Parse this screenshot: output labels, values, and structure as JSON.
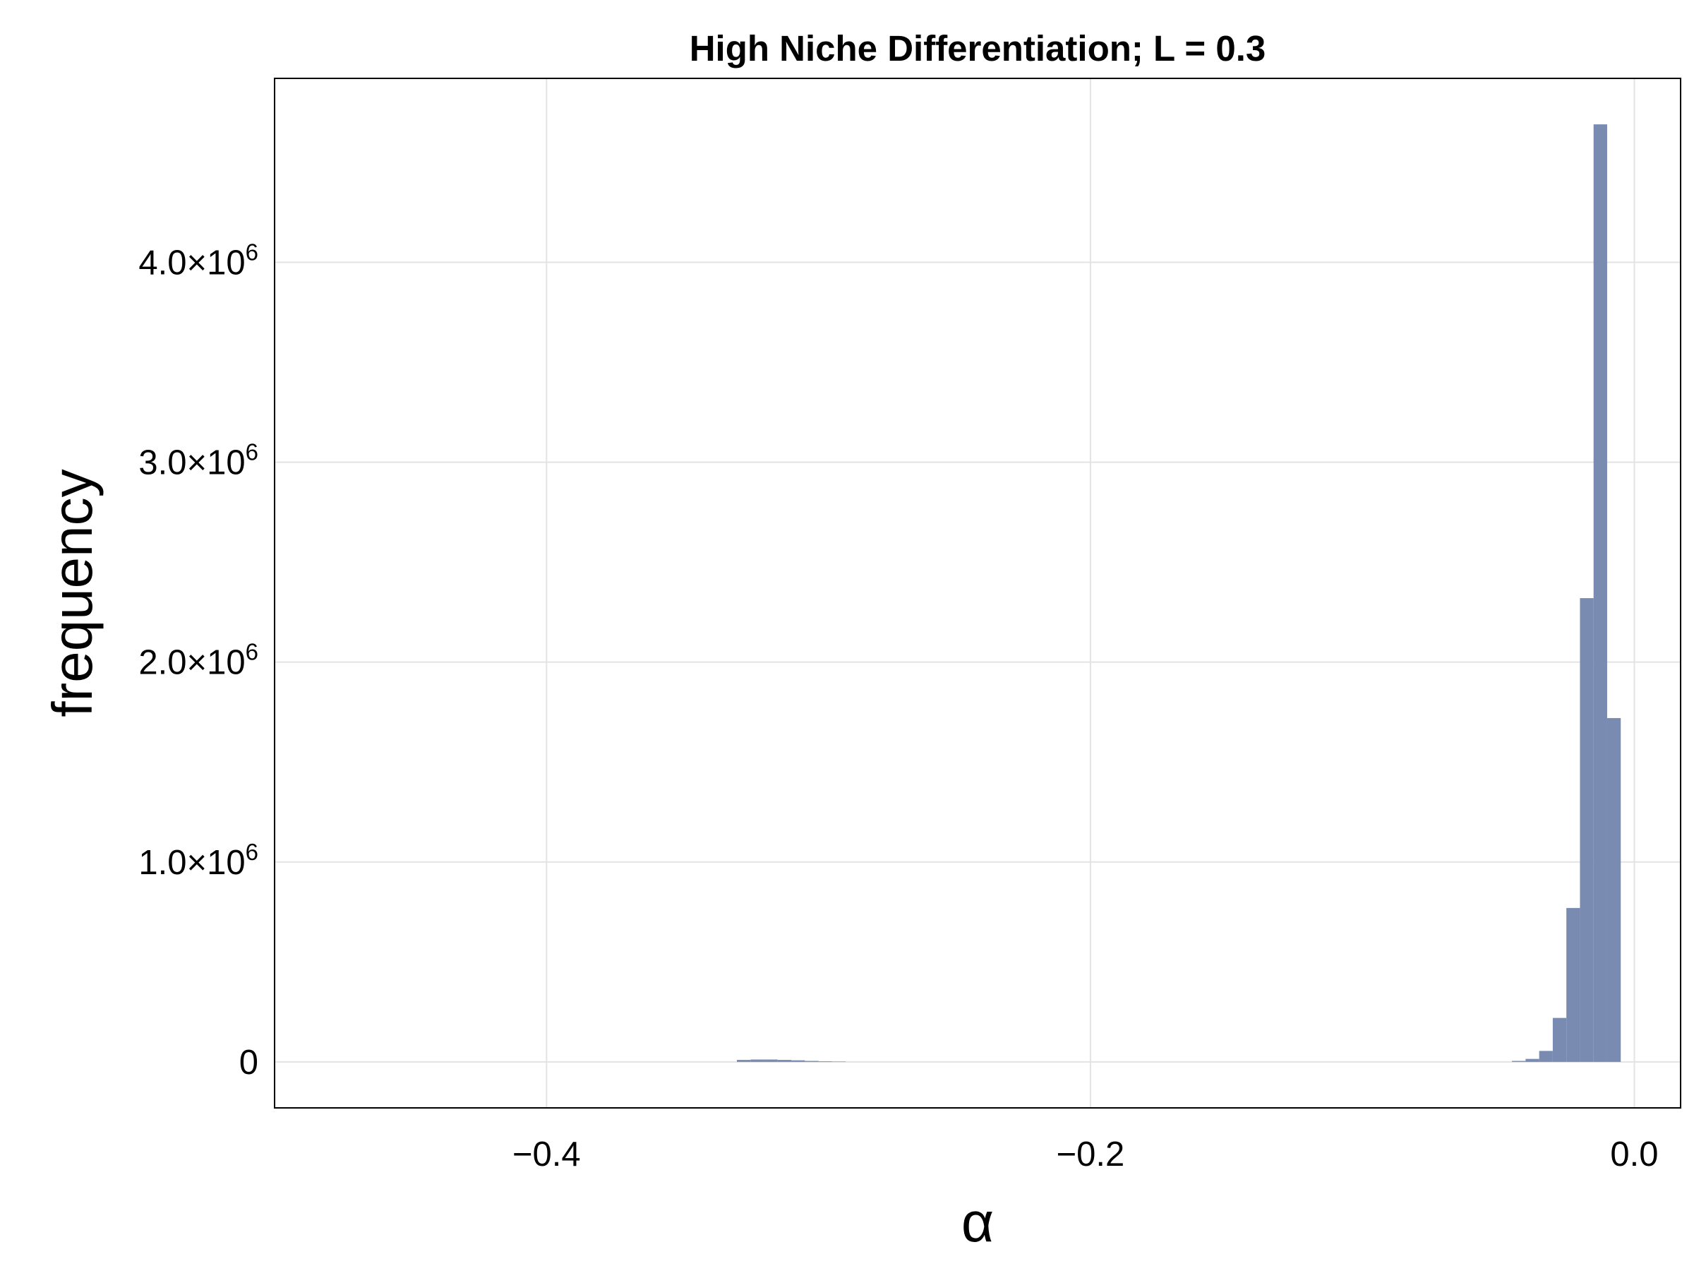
{
  "chart_data": {
    "type": "bar",
    "subtype": "histogram",
    "title": "High Niche Differentiation; L = 0.3",
    "xlabel": "α",
    "ylabel": "frequency",
    "xlim": [
      -0.5,
      0.017
    ],
    "ylim": [
      -230000,
      4920000
    ],
    "x_ticks": [
      {
        "value": -0.4,
        "label": "−0.4"
      },
      {
        "value": -0.2,
        "label": "−0.2"
      },
      {
        "value": 0.0,
        "label": "0.0"
      }
    ],
    "y_ticks": [
      {
        "value": 0,
        "label": "0",
        "exp": ""
      },
      {
        "value": 1000000,
        "label": "1.0×10",
        "exp": "6"
      },
      {
        "value": 2000000,
        "label": "2.0×10",
        "exp": "6"
      },
      {
        "value": 3000000,
        "label": "3.0×10",
        "exp": "6"
      },
      {
        "value": 4000000,
        "label": "4.0×10",
        "exp": "6"
      }
    ],
    "grid": true,
    "bar_color": "#7a8bb2",
    "bins": [
      {
        "x0": -0.33,
        "x1": -0.325,
        "value": 10000
      },
      {
        "x0": -0.325,
        "x1": -0.32,
        "value": 12000
      },
      {
        "x0": -0.32,
        "x1": -0.315,
        "value": 12000
      },
      {
        "x0": -0.315,
        "x1": -0.31,
        "value": 10000
      },
      {
        "x0": -0.31,
        "x1": -0.305,
        "value": 8000
      },
      {
        "x0": -0.305,
        "x1": -0.3,
        "value": 5000
      },
      {
        "x0": -0.3,
        "x1": -0.295,
        "value": 3000
      },
      {
        "x0": -0.295,
        "x1": -0.29,
        "value": 1500
      },
      {
        "x0": -0.045,
        "x1": -0.04,
        "value": 5000
      },
      {
        "x0": -0.04,
        "x1": -0.035,
        "value": 15000
      },
      {
        "x0": -0.035,
        "x1": -0.03,
        "value": 55000
      },
      {
        "x0": -0.03,
        "x1": -0.025,
        "value": 220000
      },
      {
        "x0": -0.025,
        "x1": -0.02,
        "value": 770000
      },
      {
        "x0": -0.02,
        "x1": -0.015,
        "value": 2320000
      },
      {
        "x0": -0.015,
        "x1": -0.01,
        "value": 4690000
      },
      {
        "x0": -0.01,
        "x1": -0.005,
        "value": 1720000
      }
    ]
  }
}
